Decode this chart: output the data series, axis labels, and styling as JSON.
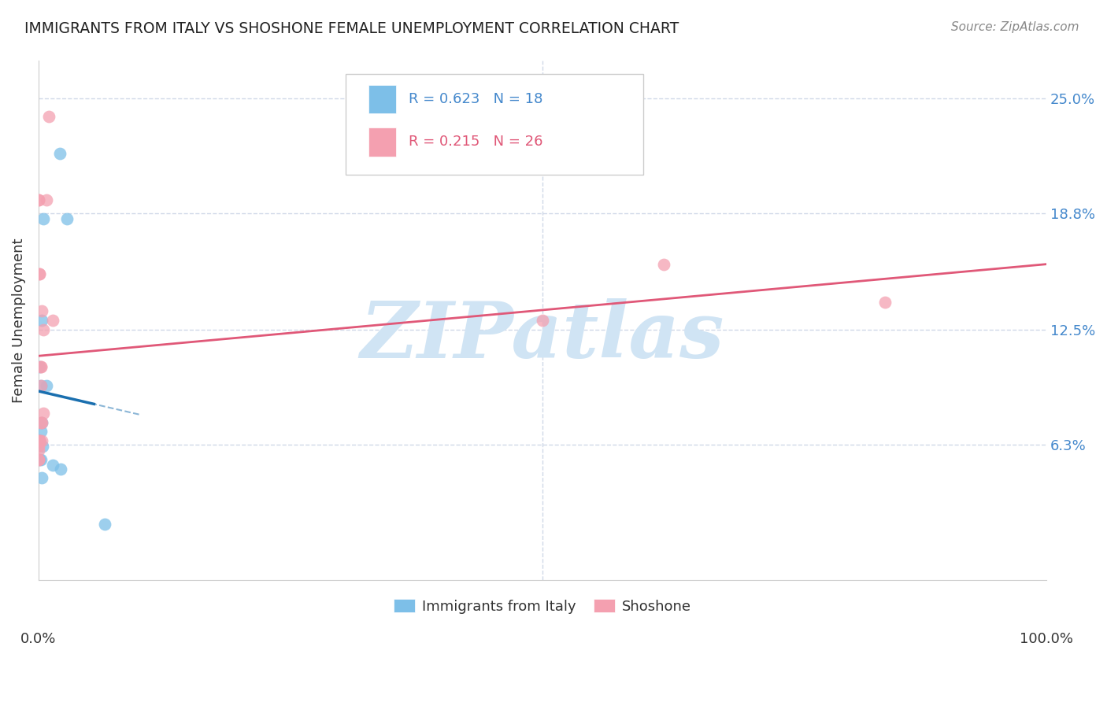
{
  "title": "IMMIGRANTS FROM ITALY VS SHOSHONE FEMALE UNEMPLOYMENT CORRELATION CHART",
  "source": "Source: ZipAtlas.com",
  "ylabel": "Female Unemployment",
  "yticks": [
    0.0,
    6.3,
    12.5,
    18.8,
    25.0
  ],
  "ytick_labels": [
    "",
    "6.3%",
    "12.5%",
    "18.8%",
    "25.0%"
  ],
  "xlim": [
    0.0,
    100.0
  ],
  "ylim": [
    -1.0,
    27.0
  ],
  "italy_x": [
    2.1,
    2.8,
    0.5,
    0.3,
    0.1,
    0.2,
    0.8,
    0.3,
    0.2,
    0.1,
    0.1,
    0.4,
    0.2,
    0.1,
    1.4,
    2.2,
    0.3,
    6.6
  ],
  "italy_y": [
    22.0,
    18.5,
    18.5,
    13.0,
    10.5,
    9.5,
    9.5,
    7.5,
    7.0,
    6.5,
    6.5,
    6.2,
    5.5,
    5.5,
    5.2,
    5.0,
    4.5,
    2.0
  ],
  "shoshone_x": [
    1.0,
    0.8,
    0.0,
    0.0,
    0.1,
    0.1,
    0.3,
    0.5,
    1.4,
    0.2,
    0.2,
    0.2,
    0.2,
    0.3,
    0.5,
    0.1,
    0.1,
    0.1,
    0.3,
    50.0,
    62.0,
    0.0,
    0.0,
    0.0,
    0.0,
    84.0
  ],
  "shoshone_y": [
    24.0,
    19.5,
    19.5,
    19.5,
    15.5,
    15.5,
    13.5,
    12.5,
    13.0,
    10.5,
    10.5,
    9.5,
    7.5,
    7.5,
    8.0,
    6.5,
    6.5,
    6.5,
    6.5,
    13.0,
    16.0,
    6.2,
    6.0,
    5.5,
    5.5,
    14.0
  ],
  "italy_color": "#7dbfe8",
  "shoshone_color": "#f4a0b0",
  "italy_line_color": "#1a6faf",
  "shoshone_line_color": "#e05878",
  "watermark": "ZIPatlas",
  "watermark_color": "#d0e4f4",
  "background_color": "#ffffff",
  "grid_color": "#d0d8e8",
  "legend_r1": "R = 0.623",
  "legend_n1": "N = 18",
  "legend_r2": "R = 0.215",
  "legend_n2": "N = 26",
  "legend_color1": "#4488cc",
  "legend_color2": "#e05878",
  "ytick_color": "#4488cc"
}
